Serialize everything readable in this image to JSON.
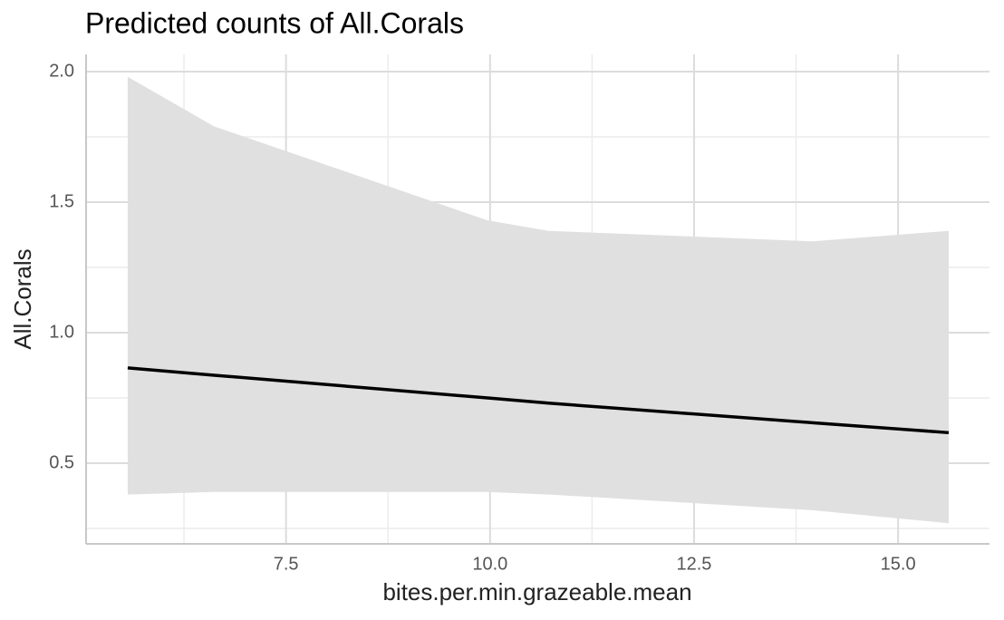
{
  "chart_data": {
    "type": "line",
    "title": "Predicted counts of All.Corals",
    "xlabel": "bites.per.min.grazeable.mean",
    "ylabel": "All.Corals",
    "x": [
      5.56,
      6.62,
      9.97,
      10.72,
      13.95,
      15.62
    ],
    "series": [
      {
        "color": "#000000",
        "values": [
          0.865,
          0.837,
          0.75,
          0.73,
          0.655,
          0.617
        ],
        "lower": [
          0.38,
          0.39,
          0.39,
          0.38,
          0.32,
          0.27
        ],
        "upper": [
          1.98,
          1.79,
          1.43,
          1.39,
          1.35,
          1.39
        ],
        "band_color": "#e0e0e0"
      }
    ],
    "xlim": [
      5.05,
      16.12
    ],
    "ylim": [
      0.191,
      2.066
    ],
    "xticks": [
      7.5,
      10.0,
      12.5,
      15.0
    ],
    "yticks": [
      {
        "value": 0.5,
        "label": "0.5"
      },
      {
        "value": 1.0,
        "label": "1.0"
      },
      {
        "value": 1.5,
        "label": "1.5"
      },
      {
        "value": 2.0,
        "label": "2.0"
      }
    ],
    "x_minor_ticks": [
      6.25,
      8.75,
      11.25,
      13.75
    ],
    "y_minor_ticks": [
      0.25,
      0.75,
      1.25,
      1.75
    ],
    "grid": true
  }
}
